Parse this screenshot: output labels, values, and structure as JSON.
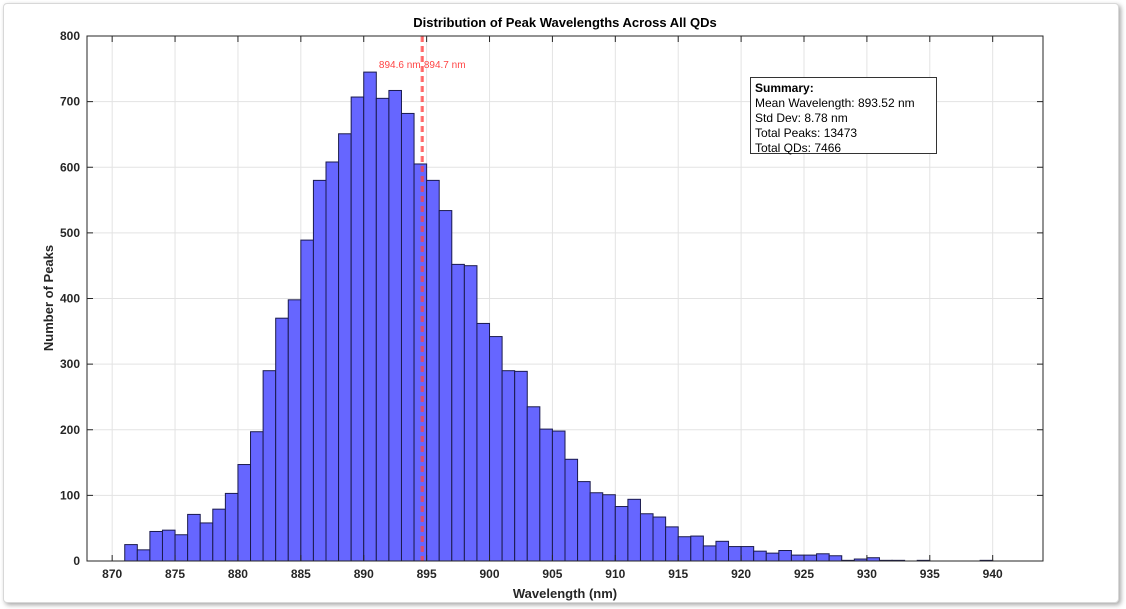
{
  "chart_data": {
    "type": "bar",
    "title": "Distribution of Peak Wavelengths Across All QDs",
    "xlabel": "Wavelength (nm)",
    "ylabel": "Number of Peaks",
    "xlim": [
      868,
      944
    ],
    "ylim": [
      0,
      800
    ],
    "xticks": [
      870,
      875,
      880,
      885,
      890,
      895,
      900,
      905,
      910,
      915,
      920,
      925,
      930,
      935,
      940
    ],
    "yticks": [
      0,
      100,
      200,
      300,
      400,
      500,
      600,
      700,
      800
    ],
    "grid": true,
    "bin_width": 1,
    "bin_starts": [
      871,
      872,
      873,
      874,
      875,
      876,
      877,
      878,
      879,
      880,
      881,
      882,
      883,
      884,
      885,
      886,
      887,
      888,
      889,
      890,
      891,
      892,
      893,
      894,
      895,
      896,
      897,
      898,
      899,
      900,
      901,
      902,
      903,
      904,
      905,
      906,
      907,
      908,
      909,
      910,
      911,
      912,
      913,
      914,
      915,
      916,
      917,
      918,
      919,
      920,
      921,
      922,
      923,
      924,
      925,
      926,
      927,
      928,
      929,
      930,
      931,
      932,
      933,
      934,
      935,
      936,
      937,
      938,
      939
    ],
    "values": [
      25,
      17,
      45,
      47,
      40,
      71,
      58,
      79,
      103,
      147,
      197,
      290,
      370,
      398,
      489,
      580,
      608,
      651,
      707,
      745,
      705,
      717,
      682,
      605,
      580,
      534,
      452,
      450,
      362,
      342,
      290,
      289,
      235,
      201,
      198,
      155,
      121,
      104,
      101,
      83,
      94,
      72,
      67,
      52,
      37,
      38,
      23,
      30,
      22,
      22,
      15,
      12,
      16,
      9,
      9,
      11,
      8,
      1,
      3,
      5,
      1,
      1,
      0,
      1,
      0,
      0,
      0,
      0,
      1
    ],
    "bar_color": "#6666ff",
    "reference_lines": [
      {
        "x": 894.6,
        "label": "894.6 nm",
        "color": "#ff4444"
      },
      {
        "x": 894.7,
        "label": "894.7 nm",
        "color": "#ff4444"
      }
    ]
  },
  "summary": {
    "heading": "Summary:",
    "mean": "Mean Wavelength: 893.52 nm",
    "std": "Std Dev: 8.78 nm",
    "peaks": "Total Peaks: 13473",
    "qds": "Total QDs: 7466"
  }
}
